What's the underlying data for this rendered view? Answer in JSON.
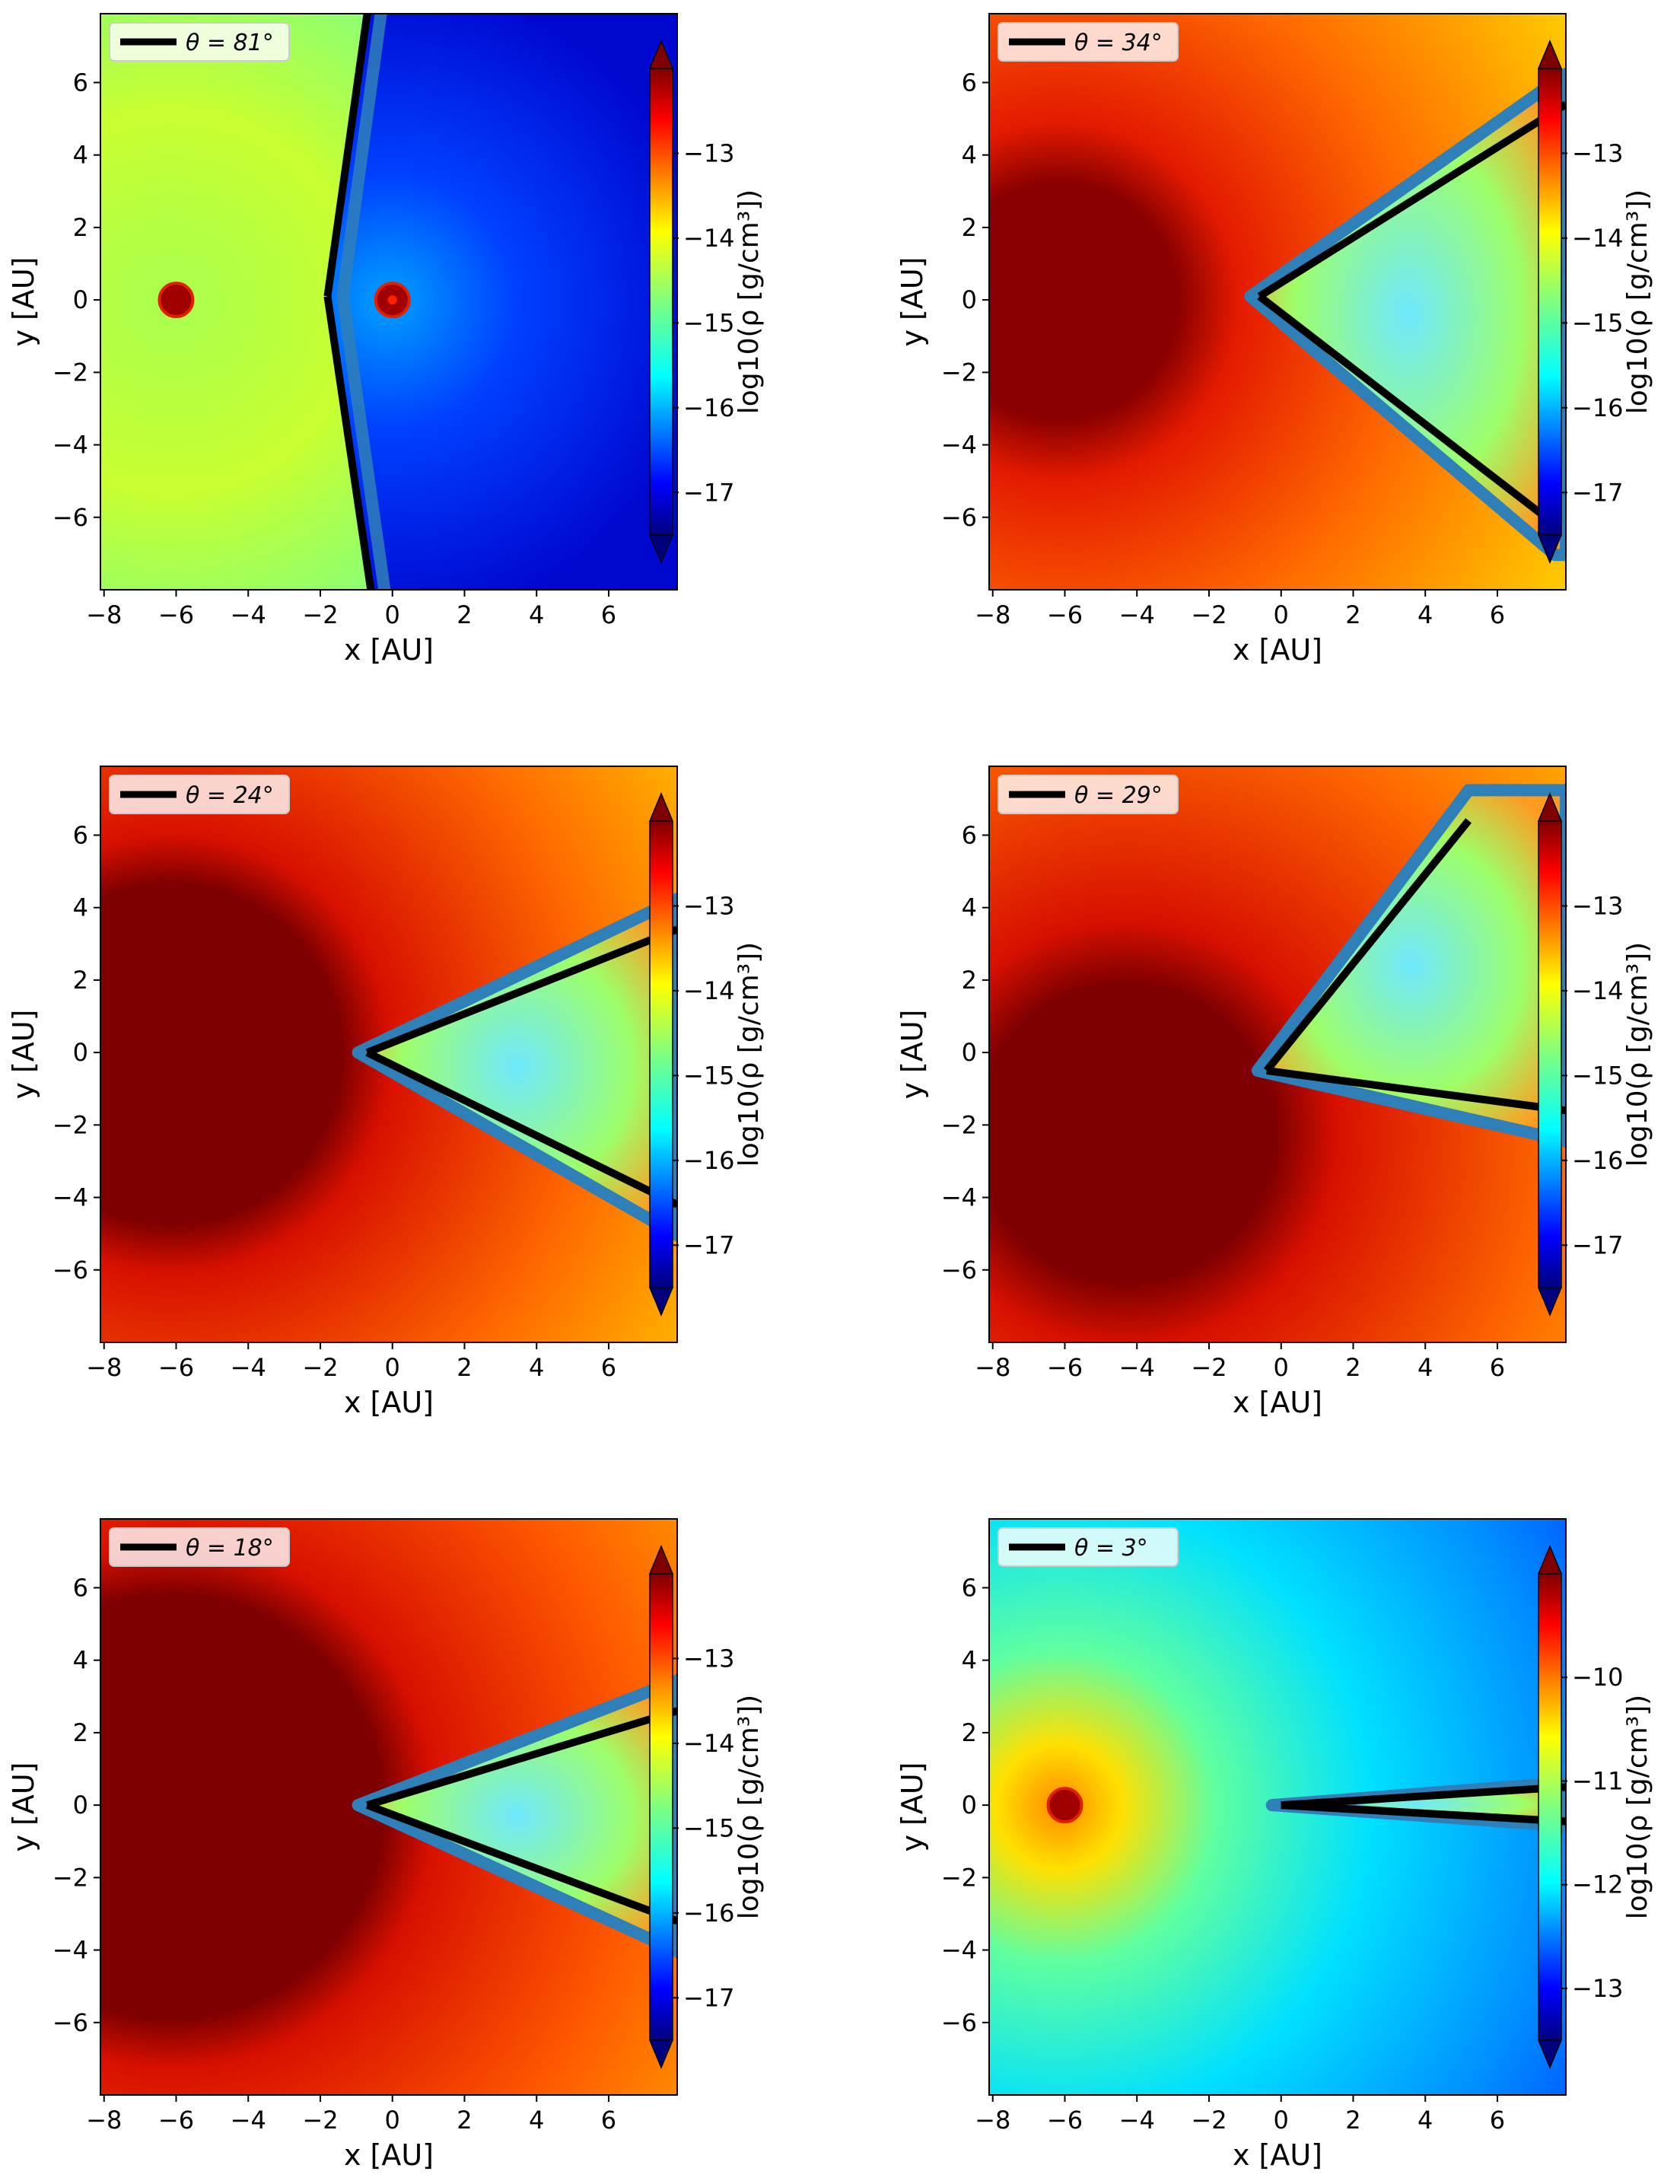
{
  "chart_data": [
    {
      "type": "heatmap",
      "panel": "top-left",
      "xlabel": "x [AU]",
      "ylabel": "y [AU]",
      "xlim": [
        -8.1,
        7.9
      ],
      "ylim": [
        -8.0,
        7.9
      ],
      "xticks": [
        -8,
        -6,
        -4,
        -2,
        0,
        2,
        4,
        6
      ],
      "yticks": [
        -6,
        -4,
        -2,
        0,
        2,
        4,
        6
      ],
      "legend_label": "θ = 81°",
      "legend_position": "top-left",
      "colorbar": {
        "label": "log10(ρ [g/cm³])",
        "ticks": [
          -13,
          -14,
          -15,
          -16,
          -17
        ],
        "range": [
          -17.5,
          -12.0
        ]
      },
      "background": "green-yellow to blue",
      "stars": [
        {
          "x": -6.0,
          "y": 0.0
        },
        {
          "x": 0.0,
          "y": 0.0
        }
      ],
      "cone_lines": [
        {
          "x1": -1.8,
          "y1": 0.1,
          "x2": -0.7,
          "y2": 7.9
        },
        {
          "x1": -1.8,
          "y1": 0.1,
          "x2": -0.6,
          "y2": -8.0
        }
      ]
    },
    {
      "type": "heatmap",
      "panel": "top-right",
      "xlabel": "x [AU]",
      "ylabel": "y [AU]",
      "xlim": [
        -8.1,
        7.9
      ],
      "ylim": [
        -8.0,
        7.9
      ],
      "xticks": [
        -8,
        -6,
        -4,
        -2,
        0,
        2,
        4,
        6
      ],
      "yticks": [
        -6,
        -4,
        -2,
        0,
        2,
        4,
        6
      ],
      "legend_label": "θ = 34°",
      "legend_position": "top-left",
      "colorbar": {
        "label": "log10(ρ [g/cm³])",
        "ticks": [
          -13,
          -14,
          -15,
          -16,
          -17
        ],
        "range": [
          -17.5,
          -12.0
        ]
      },
      "background": "red-orange to yellow",
      "stars": [
        {
          "x": -6.0,
          "y": 0.0
        }
      ],
      "cone_lines": [
        {
          "x1": -0.6,
          "y1": 0.1,
          "x2": 7.9,
          "y2": 5.4
        },
        {
          "x1": -0.6,
          "y1": 0.1,
          "x2": 7.6,
          "y2": -6.2
        }
      ]
    },
    {
      "type": "heatmap",
      "panel": "middle-left",
      "xlabel": "x [AU]",
      "ylabel": "y [AU]",
      "xlim": [
        -8.1,
        7.9
      ],
      "ylim": [
        -8.0,
        7.9
      ],
      "xticks": [
        -8,
        -6,
        -4,
        -2,
        0,
        2,
        4,
        6
      ],
      "yticks": [
        -6,
        -4,
        -2,
        0,
        2,
        4,
        6
      ],
      "legend_label": "θ = 24°",
      "legend_position": "top-left",
      "colorbar": {
        "label": "log10(ρ [g/cm³])",
        "ticks": [
          -13,
          -14,
          -15,
          -16,
          -17
        ],
        "range": [
          -17.5,
          -12.0
        ]
      },
      "background": "dark red to orange",
      "stars": [
        {
          "x": -6.0,
          "y": 0.0
        }
      ],
      "cone_lines": [
        {
          "x1": -0.7,
          "y1": 0.0,
          "x2": 7.9,
          "y2": 3.4
        },
        {
          "x1": -0.7,
          "y1": 0.0,
          "x2": 7.9,
          "y2": -4.2
        }
      ]
    },
    {
      "type": "heatmap",
      "panel": "middle-right",
      "xlabel": "x [AU]",
      "ylabel": "y [AU]",
      "xlim": [
        -8.1,
        7.9
      ],
      "ylim": [
        -8.0,
        7.9
      ],
      "xticks": [
        -8,
        -6,
        -4,
        -2,
        0,
        2,
        4,
        6
      ],
      "yticks": [
        -6,
        -4,
        -2,
        0,
        2,
        4,
        6
      ],
      "legend_label": "θ = 29°",
      "legend_position": "top-left",
      "colorbar": {
        "label": "log10(ρ [g/cm³])",
        "ticks": [
          -13,
          -14,
          -15,
          -16,
          -17
        ],
        "range": [
          -17.5,
          -12.0
        ]
      },
      "background": "dark red to orange",
      "stars": [
        {
          "x": -3.6,
          "y": -4.0
        }
      ],
      "cone_lines": [
        {
          "x1": -0.4,
          "y1": -0.5,
          "x2": 5.2,
          "y2": 6.4
        },
        {
          "x1": -0.4,
          "y1": -0.5,
          "x2": 7.9,
          "y2": -1.6
        }
      ]
    },
    {
      "type": "heatmap",
      "panel": "bottom-left",
      "xlabel": "x [AU]",
      "ylabel": "y [AU]",
      "xlim": [
        -8.1,
        7.9
      ],
      "ylim": [
        -8.0,
        7.9
      ],
      "xticks": [
        -8,
        -6,
        -4,
        -2,
        0,
        2,
        4,
        6
      ],
      "yticks": [
        -6,
        -4,
        -2,
        0,
        2,
        4,
        6
      ],
      "legend_label": "θ = 18°",
      "legend_position": "top-left",
      "colorbar": {
        "label": "log10(ρ [g/cm³])",
        "ticks": [
          -13,
          -14,
          -15,
          -16,
          -17
        ],
        "range": [
          -17.5,
          -12.0
        ]
      },
      "background": "dark red to orange",
      "stars": [
        {
          "x": -6.0,
          "y": 0.0
        }
      ],
      "cone_lines": [
        {
          "x1": -0.7,
          "y1": 0.0,
          "x2": 7.9,
          "y2": 2.6
        },
        {
          "x1": -0.7,
          "y1": 0.0,
          "x2": 7.9,
          "y2": -3.2
        }
      ]
    },
    {
      "type": "heatmap",
      "panel": "bottom-right",
      "xlabel": "x [AU]",
      "ylabel": "y [AU]",
      "xlim": [
        -8.1,
        7.9
      ],
      "ylim": [
        -8.0,
        7.9
      ],
      "xticks": [
        -8,
        -6,
        -4,
        -2,
        0,
        2,
        4,
        6
      ],
      "yticks": [
        -6,
        -4,
        -2,
        0,
        2,
        4,
        6
      ],
      "legend_label": "θ = 3°",
      "legend_position": "top-left",
      "colorbar": {
        "label": "log10(ρ [g/cm³])",
        "ticks": [
          -10,
          -11,
          -12,
          -13
        ],
        "range": [
          -13.5,
          -9.0
        ]
      },
      "background": "cyan to blue",
      "stars": [
        {
          "x": -6.0,
          "y": 0.0
        }
      ],
      "cone_lines": [
        {
          "x1": 0.0,
          "y1": 0.0,
          "x2": 7.9,
          "y2": 0.5
        },
        {
          "x1": 0.0,
          "y1": 0.0,
          "x2": 7.9,
          "y2": -0.45
        }
      ]
    }
  ]
}
